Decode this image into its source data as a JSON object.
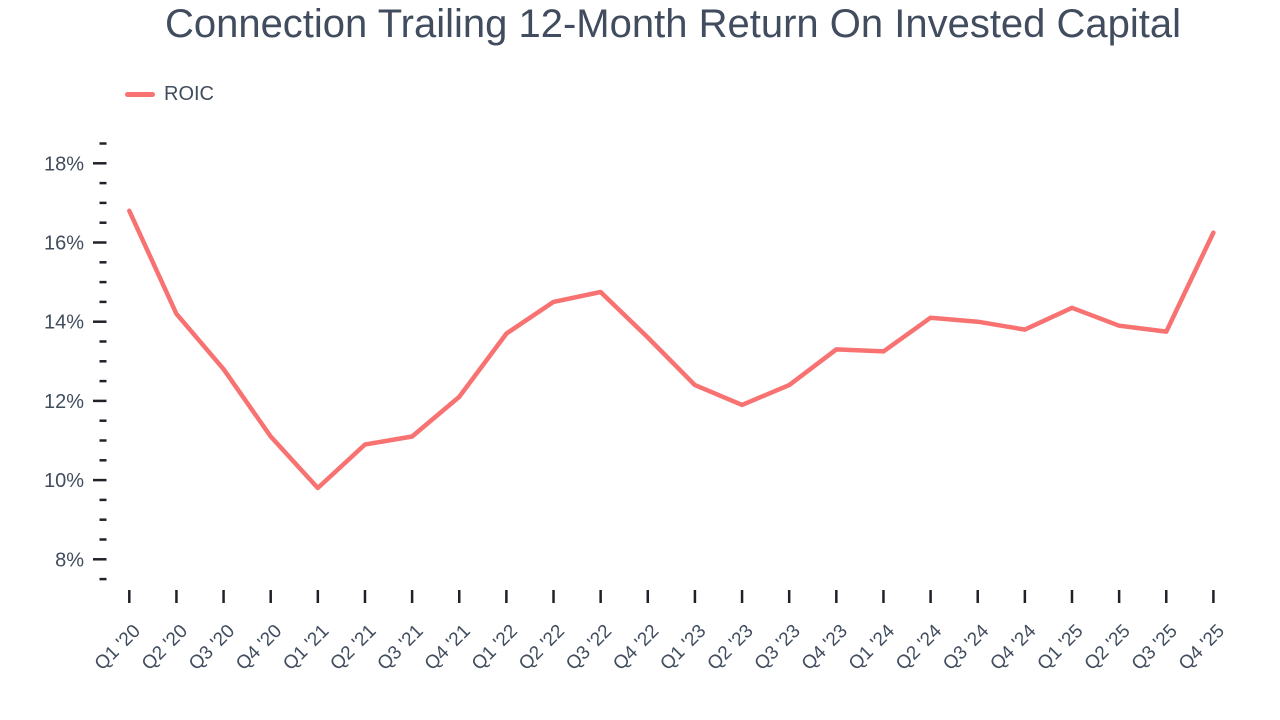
{
  "chart_data": {
    "type": "line",
    "title": "Connection Trailing 12-Month Return On Invested Capital",
    "xlabel": "",
    "ylabel": "",
    "grid": false,
    "legend_position": "top-left",
    "ylim": [
      7.5,
      18.5
    ],
    "y_major_ticks": [
      8,
      10,
      12,
      14,
      16,
      18
    ],
    "y_tick_labels": [
      "8%",
      "10%",
      "12%",
      "14%",
      "16%",
      "18%"
    ],
    "y_minor_tick_step": 0.5,
    "categories": [
      "Q1 '20",
      "Q2 '20",
      "Q3 '20",
      "Q4 '20",
      "Q1 '21",
      "Q2 '21",
      "Q3 '21",
      "Q4 '21",
      "Q1 '22",
      "Q2 '22",
      "Q3 '22",
      "Q4 '22",
      "Q1 '23",
      "Q2 '23",
      "Q3 '23",
      "Q4 '23",
      "Q1 '24",
      "Q2 '24",
      "Q3 '24",
      "Q4 '24",
      "Q1 '25",
      "Q2 '25",
      "Q3 '25",
      "Q4 '25"
    ],
    "series": [
      {
        "name": "ROIC",
        "color": "#f87272",
        "values": [
          16.8,
          14.2,
          12.8,
          11.1,
          9.8,
          10.9,
          11.1,
          12.1,
          13.7,
          14.5,
          14.75,
          13.6,
          12.4,
          11.9,
          12.4,
          13.3,
          13.25,
          14.1,
          14.0,
          13.8,
          14.35,
          13.9,
          13.75,
          16.25
        ]
      }
    ]
  },
  "colors": {
    "series_line": "#f87272",
    "text": "#414d5e",
    "tick": "#1f2329",
    "background": "#ffffff"
  }
}
